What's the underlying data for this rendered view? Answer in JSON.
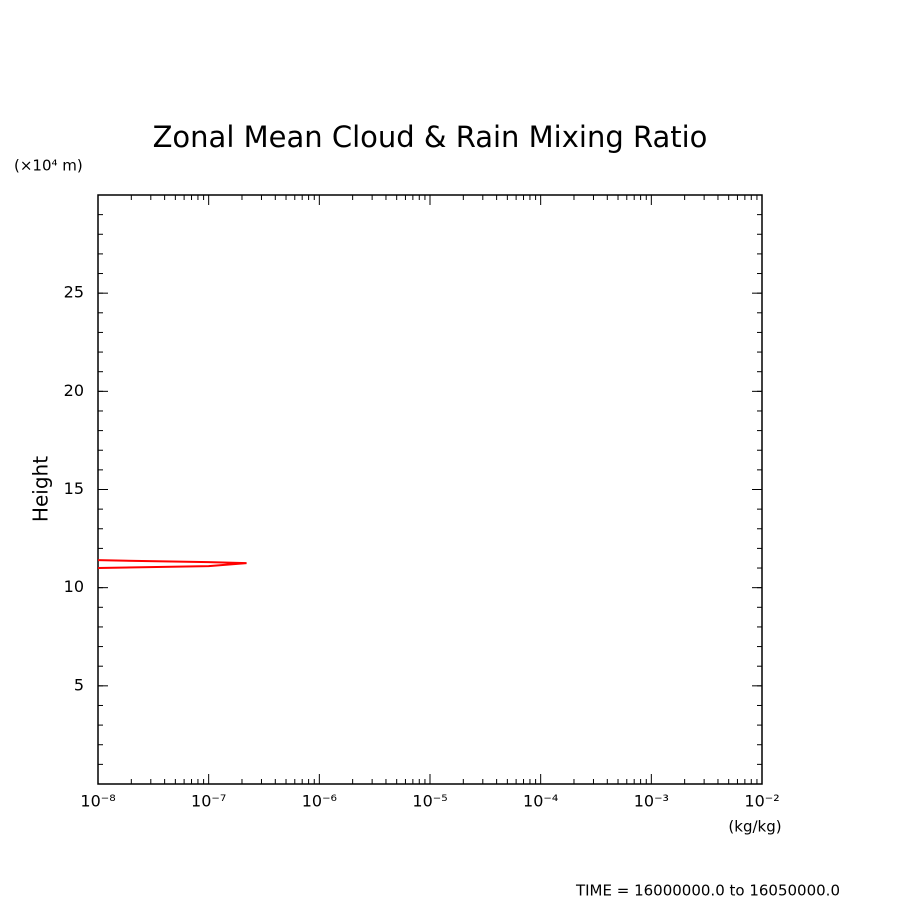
{
  "chart_data": {
    "type": "line",
    "title": "Zonal Mean Cloud & Rain Mixing Ratio",
    "ylabel": "Height",
    "yunit": "(×10⁴ m)",
    "xunit": "(kg/kg)",
    "footer": "TIME = 16000000.0 to 16050000.0",
    "xscale": "log",
    "xlim": [
      1e-08,
      0.01
    ],
    "xticks": [
      {
        "value": 1e-08,
        "label": "10⁻⁸"
      },
      {
        "value": 1e-07,
        "label": "10⁻⁷"
      },
      {
        "value": 1e-06,
        "label": "10⁻⁶"
      },
      {
        "value": 1e-05,
        "label": "10⁻⁵"
      },
      {
        "value": 0.0001,
        "label": "10⁻⁴"
      },
      {
        "value": 0.001,
        "label": "10⁻³"
      },
      {
        "value": 0.01,
        "label": "10⁻²"
      }
    ],
    "ylim": [
      0,
      30
    ],
    "yticks": [
      5,
      10,
      15,
      20,
      25
    ],
    "grid": false,
    "series": [
      {
        "color": "#ff0000",
        "x": [
          1e-08,
          1e-07,
          2.2e-07,
          1e-07,
          1e-08
        ],
        "values": [
          11.0,
          11.1,
          11.25,
          11.3,
          11.4
        ]
      }
    ]
  }
}
